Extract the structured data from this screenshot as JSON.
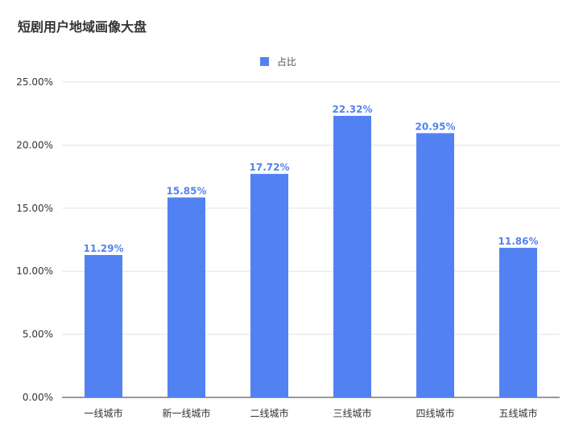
{
  "title": "短剧用户地域画像大盘",
  "legend": {
    "label": "占比",
    "color": "#5282f2"
  },
  "chart_data": {
    "type": "bar",
    "categories": [
      "一线城市",
      "新一线城市",
      "二线城市",
      "三线城市",
      "四线城市",
      "五线城市"
    ],
    "series": [
      {
        "name": "占比",
        "values": [
          11.29,
          15.85,
          17.72,
          22.32,
          20.95,
          11.86
        ]
      }
    ],
    "value_labels": [
      "11.29%",
      "15.85%",
      "17.72%",
      "22.32%",
      "20.95%",
      "11.86%"
    ],
    "y_ticks": [
      "0.00%",
      "5.00%",
      "10.00%",
      "15.00%",
      "20.00%",
      "25.00%"
    ],
    "ylim": [
      0,
      25
    ],
    "grid": true,
    "legend_position": "top-center",
    "bar_color": "#5282f2"
  }
}
